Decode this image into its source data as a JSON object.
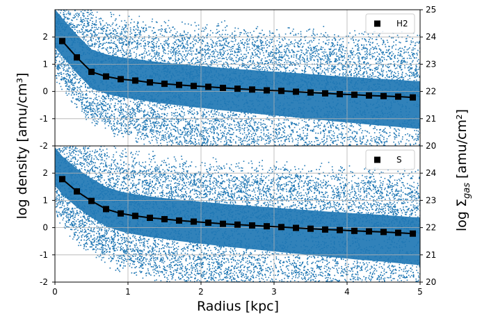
{
  "chart_data": [
    {
      "type": "scatter",
      "panel": "top",
      "legend": {
        "label": "H2",
        "position": "upper right",
        "marker": "square",
        "color": "#000000"
      },
      "xlim": [
        0,
        5
      ],
      "ylim_left": [
        -2,
        3
      ],
      "ylim_right": [
        20,
        25
      ],
      "x_ticks": [],
      "y_ticks_left": [
        "-2",
        "-1",
        "0",
        "1",
        "2"
      ],
      "y_ticks_right": [
        "20",
        "21",
        "22",
        "23",
        "24",
        "25"
      ],
      "grid": true,
      "scatter_color": "#1f77b4",
      "profile": {
        "x": [
          0.1,
          0.3,
          0.5,
          0.7,
          0.9,
          1.1,
          1.3,
          1.5,
          1.7,
          1.9,
          2.1,
          2.3,
          2.5,
          2.7,
          2.9,
          3.1,
          3.3,
          3.5,
          3.7,
          3.9,
          4.1,
          4.3,
          4.5,
          4.7,
          4.9
        ],
        "y": [
          1.85,
          1.25,
          0.72,
          0.55,
          0.45,
          0.4,
          0.33,
          0.28,
          0.24,
          0.2,
          0.17,
          0.13,
          0.1,
          0.07,
          0.04,
          0.02,
          -0.01,
          -0.04,
          -0.07,
          -0.1,
          -0.12,
          -0.15,
          -0.17,
          -0.19,
          -0.22
        ]
      }
    },
    {
      "type": "scatter",
      "panel": "bottom",
      "legend": {
        "label": "S",
        "position": "upper right",
        "marker": "square",
        "color": "#000000"
      },
      "xlim": [
        0,
        5
      ],
      "ylim_left": [
        -2,
        3
      ],
      "ylim_right": [
        20,
        25
      ],
      "x_ticks": [
        "0",
        "1",
        "2",
        "3",
        "4",
        "5"
      ],
      "y_ticks_left": [
        "-2",
        "-1",
        "0",
        "1",
        "2"
      ],
      "y_ticks_right": [
        "20",
        "21",
        "22",
        "23",
        "24"
      ],
      "grid": true,
      "scatter_color": "#1f77b4",
      "profile": {
        "x": [
          0.1,
          0.3,
          0.5,
          0.7,
          0.9,
          1.1,
          1.3,
          1.5,
          1.7,
          1.9,
          2.1,
          2.3,
          2.5,
          2.7,
          2.9,
          3.1,
          3.3,
          3.5,
          3.7,
          3.9,
          4.1,
          4.3,
          4.5,
          4.7,
          4.9
        ],
        "y": [
          1.78,
          1.33,
          0.98,
          0.68,
          0.52,
          0.43,
          0.36,
          0.31,
          0.26,
          0.22,
          0.18,
          0.14,
          0.11,
          0.08,
          0.05,
          0.02,
          -0.01,
          -0.04,
          -0.07,
          -0.09,
          -0.12,
          -0.14,
          -0.16,
          -0.19,
          -0.22
        ]
      }
    }
  ],
  "labels": {
    "xlabel": "Radius [kpc]",
    "ylabel_left": "log density [amu/cm³]",
    "ylabel_right_prefix": "log Σ",
    "ylabel_right_sub": "gas",
    "ylabel_right_suffix": " [amu/cm²]"
  }
}
